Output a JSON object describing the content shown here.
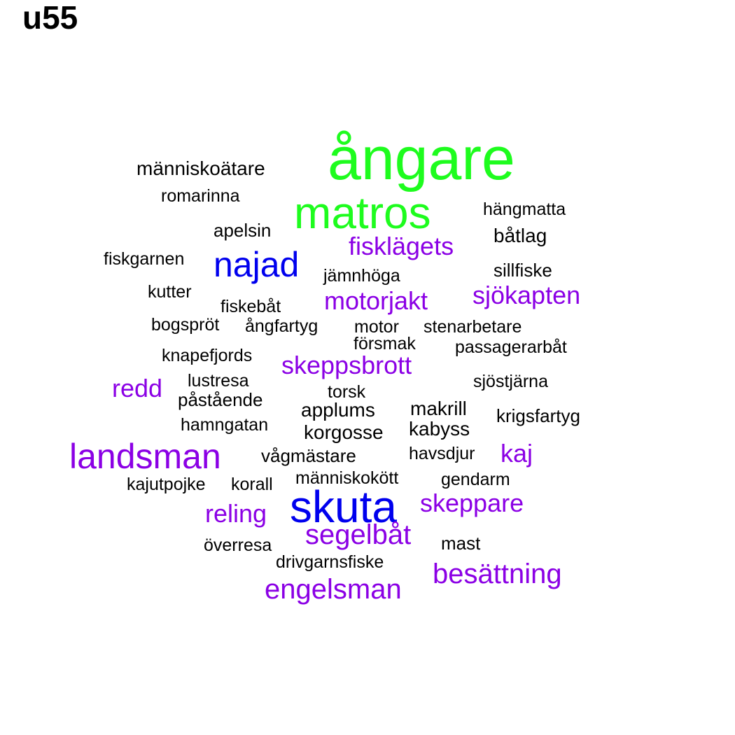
{
  "title": "u55",
  "colors": {
    "green": "#1efc1e",
    "blue": "#0000ee",
    "purple": "#8b00e5",
    "black": "#000000"
  },
  "words": [
    {
      "text": "ångare",
      "color": "green"
    },
    {
      "text": "matros",
      "color": "green"
    },
    {
      "text": "najad",
      "color": "blue"
    },
    {
      "text": "skuta",
      "color": "blue"
    },
    {
      "text": "landsman",
      "color": "purple"
    },
    {
      "text": "fisklägets",
      "color": "purple"
    },
    {
      "text": "sjökapten",
      "color": "purple"
    },
    {
      "text": "motorjakt",
      "color": "purple"
    },
    {
      "text": "skeppsbrott",
      "color": "purple"
    },
    {
      "text": "redd",
      "color": "purple"
    },
    {
      "text": "kaj",
      "color": "purple"
    },
    {
      "text": "skeppare",
      "color": "purple"
    },
    {
      "text": "reling",
      "color": "purple"
    },
    {
      "text": "segelbåt",
      "color": "purple"
    },
    {
      "text": "besättning",
      "color": "purple"
    },
    {
      "text": "engelsman",
      "color": "purple"
    },
    {
      "text": "människoätare",
      "color": "black"
    },
    {
      "text": "romarinna",
      "color": "black"
    },
    {
      "text": "hängmatta",
      "color": "black"
    },
    {
      "text": "apelsin",
      "color": "black"
    },
    {
      "text": "båtlag",
      "color": "black"
    },
    {
      "text": "fiskgarnen",
      "color": "black"
    },
    {
      "text": "sillfiske",
      "color": "black"
    },
    {
      "text": "jämnhöga",
      "color": "black"
    },
    {
      "text": "kutter",
      "color": "black"
    },
    {
      "text": "fiskebåt",
      "color": "black"
    },
    {
      "text": "bogspröt",
      "color": "black"
    },
    {
      "text": "ångfartyg",
      "color": "black"
    },
    {
      "text": "motor",
      "color": "black"
    },
    {
      "text": "stenarbetare",
      "color": "black"
    },
    {
      "text": "försmak",
      "color": "black"
    },
    {
      "text": "passagerarbåt",
      "color": "black"
    },
    {
      "text": "knapefjords",
      "color": "black"
    },
    {
      "text": "lustresa",
      "color": "black"
    },
    {
      "text": "sjöstjärna",
      "color": "black"
    },
    {
      "text": "torsk",
      "color": "black"
    },
    {
      "text": "påstående",
      "color": "black"
    },
    {
      "text": "applums",
      "color": "black"
    },
    {
      "text": "makrill",
      "color": "black"
    },
    {
      "text": "krigsfartyg",
      "color": "black"
    },
    {
      "text": "hamngatan",
      "color": "black"
    },
    {
      "text": "korgosse",
      "color": "black"
    },
    {
      "text": "kabyss",
      "color": "black"
    },
    {
      "text": "vågmästare",
      "color": "black"
    },
    {
      "text": "havsdjur",
      "color": "black"
    },
    {
      "text": "kajutpojke",
      "color": "black"
    },
    {
      "text": "korall",
      "color": "black"
    },
    {
      "text": "människokött",
      "color": "black"
    },
    {
      "text": "gendarm",
      "color": "black"
    },
    {
      "text": "överresa",
      "color": "black"
    },
    {
      "text": "mast",
      "color": "black"
    },
    {
      "text": "drivgarnsfiske",
      "color": "black"
    }
  ]
}
